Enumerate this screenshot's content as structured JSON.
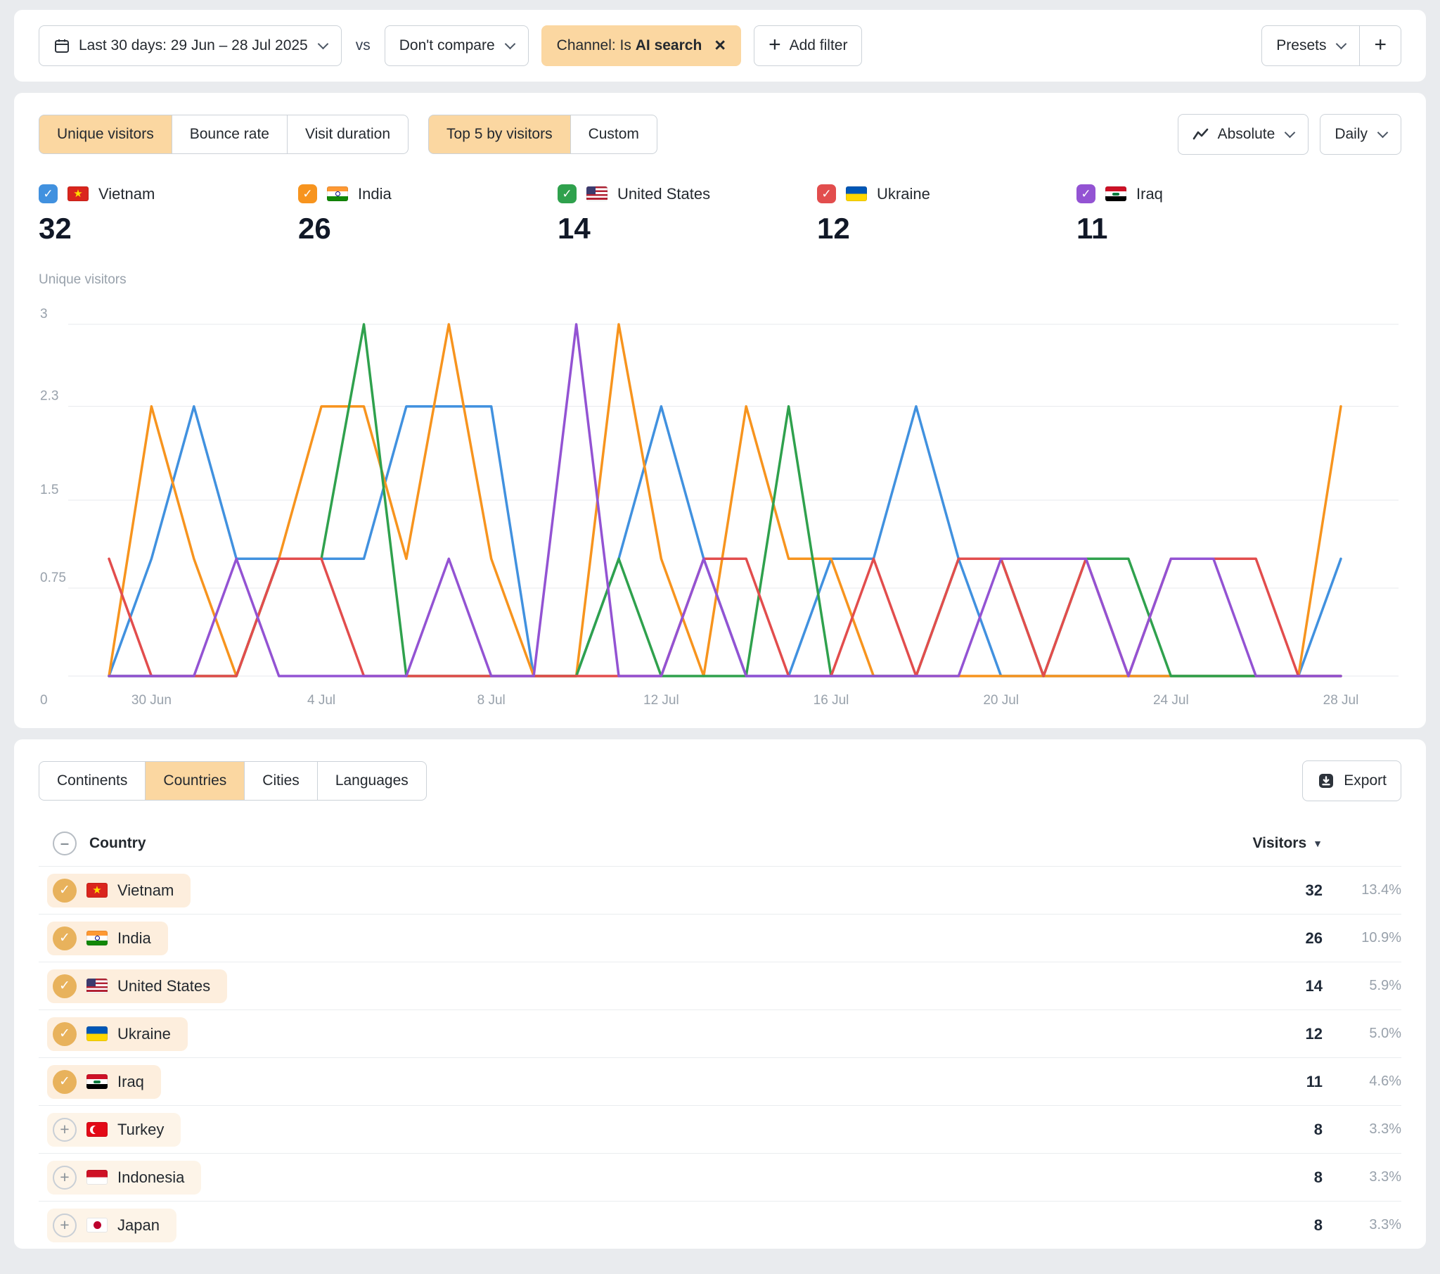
{
  "colors": {
    "accent_peach": "#fbd7a1",
    "row_highlight_selected": "#fdeedd",
    "row_highlight_unselected": "#fdf4e8",
    "check_circle": "#e8b25c"
  },
  "filter_bar": {
    "date_range": "Last 30 days: 29 Jun – 28 Jul 2025",
    "vs_label": "vs",
    "compare": "Don't compare",
    "filter_chip": {
      "prefix": "Channel: Is ",
      "value": "AI search"
    },
    "add_filter": "Add filter",
    "presets": "Presets"
  },
  "metric_tabs": [
    {
      "label": "Unique visitors",
      "active": true
    },
    {
      "label": "Bounce rate",
      "active": false
    },
    {
      "label": "Visit duration",
      "active": false
    }
  ],
  "breakdown_tabs": [
    {
      "label": "Top 5 by visitors",
      "active": true
    },
    {
      "label": "Custom",
      "active": false
    }
  ],
  "view_controls": {
    "mode": "Absolute",
    "interval": "Daily"
  },
  "legend": [
    {
      "country": "Vietnam",
      "flag": "vn",
      "value": 32,
      "color": "#4191df",
      "checked": true
    },
    {
      "country": "India",
      "flag": "in",
      "value": 26,
      "color": "#f7941e",
      "checked": true
    },
    {
      "country": "United States",
      "flag": "us",
      "value": 14,
      "color": "#2fa14d",
      "checked": true
    },
    {
      "country": "Ukraine",
      "flag": "ua",
      "value": 12,
      "color": "#e24d4d",
      "checked": true
    },
    {
      "country": "Iraq",
      "flag": "iq",
      "value": 11,
      "color": "#9353d3",
      "checked": true
    }
  ],
  "chart_data": {
    "type": "line",
    "ylabel": "Unique visitors",
    "ylim": [
      0,
      3
    ],
    "grid": true,
    "legend_position": "top",
    "x": [
      "29 Jun",
      "30 Jun",
      "1 Jul",
      "2 Jul",
      "3 Jul",
      "4 Jul",
      "5 Jul",
      "6 Jul",
      "7 Jul",
      "8 Jul",
      "9 Jul",
      "10 Jul",
      "11 Jul",
      "12 Jul",
      "13 Jul",
      "14 Jul",
      "15 Jul",
      "16 Jul",
      "17 Jul",
      "18 Jul",
      "19 Jul",
      "20 Jul",
      "21 Jul",
      "22 Jul",
      "23 Jul",
      "24 Jul",
      "25 Jul",
      "26 Jul",
      "27 Jul",
      "28 Jul"
    ],
    "x_ticks": [
      {
        "index": 1,
        "label": "30 Jun"
      },
      {
        "index": 5,
        "label": "4 Jul"
      },
      {
        "index": 9,
        "label": "8 Jul"
      },
      {
        "index": 13,
        "label": "12 Jul"
      },
      {
        "index": 17,
        "label": "16 Jul"
      },
      {
        "index": 21,
        "label": "20 Jul"
      },
      {
        "index": 25,
        "label": "24 Jul"
      },
      {
        "index": 29,
        "label": "28 Jul"
      }
    ],
    "y_ticks": [
      {
        "value": 0,
        "label": "0"
      },
      {
        "value": 0.75,
        "label": "0.75"
      },
      {
        "value": 1.5,
        "label": "1.5"
      },
      {
        "value": 2.3,
        "label": "2.3"
      },
      {
        "value": 3,
        "label": "3"
      }
    ],
    "series": [
      {
        "name": "Vietnam",
        "color": "#4191df",
        "values": [
          0,
          1,
          2.3,
          1,
          1,
          1,
          1,
          2.3,
          2.3,
          2.3,
          0,
          0,
          1,
          2.3,
          1,
          0,
          0,
          1,
          1,
          2.3,
          1,
          0,
          0,
          0,
          0,
          0,
          0,
          0,
          0,
          1
        ]
      },
      {
        "name": "India",
        "color": "#f7941e",
        "values": [
          0,
          2.3,
          1,
          0,
          1,
          2.3,
          2.3,
          1,
          3,
          1,
          0,
          0,
          3,
          1,
          0,
          2.3,
          1,
          1,
          0,
          0,
          0,
          0,
          0,
          0,
          0,
          0,
          0,
          0,
          0,
          2.3
        ]
      },
      {
        "name": "United States",
        "color": "#2fa14d",
        "values": [
          0,
          0,
          0,
          0,
          1,
          1,
          3,
          0,
          0,
          0,
          0,
          0,
          1,
          0,
          0,
          0,
          2.3,
          0,
          0,
          0,
          1,
          1,
          0,
          1,
          1,
          0,
          0,
          0,
          0,
          0
        ]
      },
      {
        "name": "Ukraine",
        "color": "#e24d4d",
        "values": [
          1,
          0,
          0,
          0,
          1,
          1,
          0,
          0,
          0,
          0,
          0,
          0,
          0,
          0,
          1,
          1,
          0,
          0,
          1,
          0,
          1,
          1,
          0,
          1,
          0,
          1,
          1,
          1,
          0,
          0
        ]
      },
      {
        "name": "Iraq",
        "color": "#9353d3",
        "values": [
          0,
          0,
          0,
          1,
          0,
          0,
          0,
          0,
          1,
          0,
          0,
          3,
          0,
          0,
          1,
          0,
          0,
          0,
          0,
          0,
          0,
          1,
          1,
          1,
          0,
          1,
          1,
          0,
          0,
          0
        ]
      }
    ]
  },
  "table_section": {
    "tabs": [
      {
        "label": "Continents",
        "active": false
      },
      {
        "label": "Countries",
        "active": true
      },
      {
        "label": "Cities",
        "active": false
      },
      {
        "label": "Languages",
        "active": false
      }
    ],
    "export_label": "Export",
    "header": {
      "country": "Country",
      "visitors": "Visitors"
    },
    "rows": [
      {
        "country": "Vietnam",
        "flag": "vn",
        "visitors": 32,
        "share": "13.4%",
        "selected": true
      },
      {
        "country": "India",
        "flag": "in",
        "visitors": 26,
        "share": "10.9%",
        "selected": true
      },
      {
        "country": "United States",
        "flag": "us",
        "visitors": 14,
        "share": "5.9%",
        "selected": true
      },
      {
        "country": "Ukraine",
        "flag": "ua",
        "visitors": 12,
        "share": "5.0%",
        "selected": true
      },
      {
        "country": "Iraq",
        "flag": "iq",
        "visitors": 11,
        "share": "4.6%",
        "selected": true
      },
      {
        "country": "Turkey",
        "flag": "tr",
        "visitors": 8,
        "share": "3.3%",
        "selected": false
      },
      {
        "country": "Indonesia",
        "flag": "id",
        "visitors": 8,
        "share": "3.3%",
        "selected": false
      },
      {
        "country": "Japan",
        "flag": "jp",
        "visitors": 8,
        "share": "3.3%",
        "selected": false
      }
    ]
  }
}
